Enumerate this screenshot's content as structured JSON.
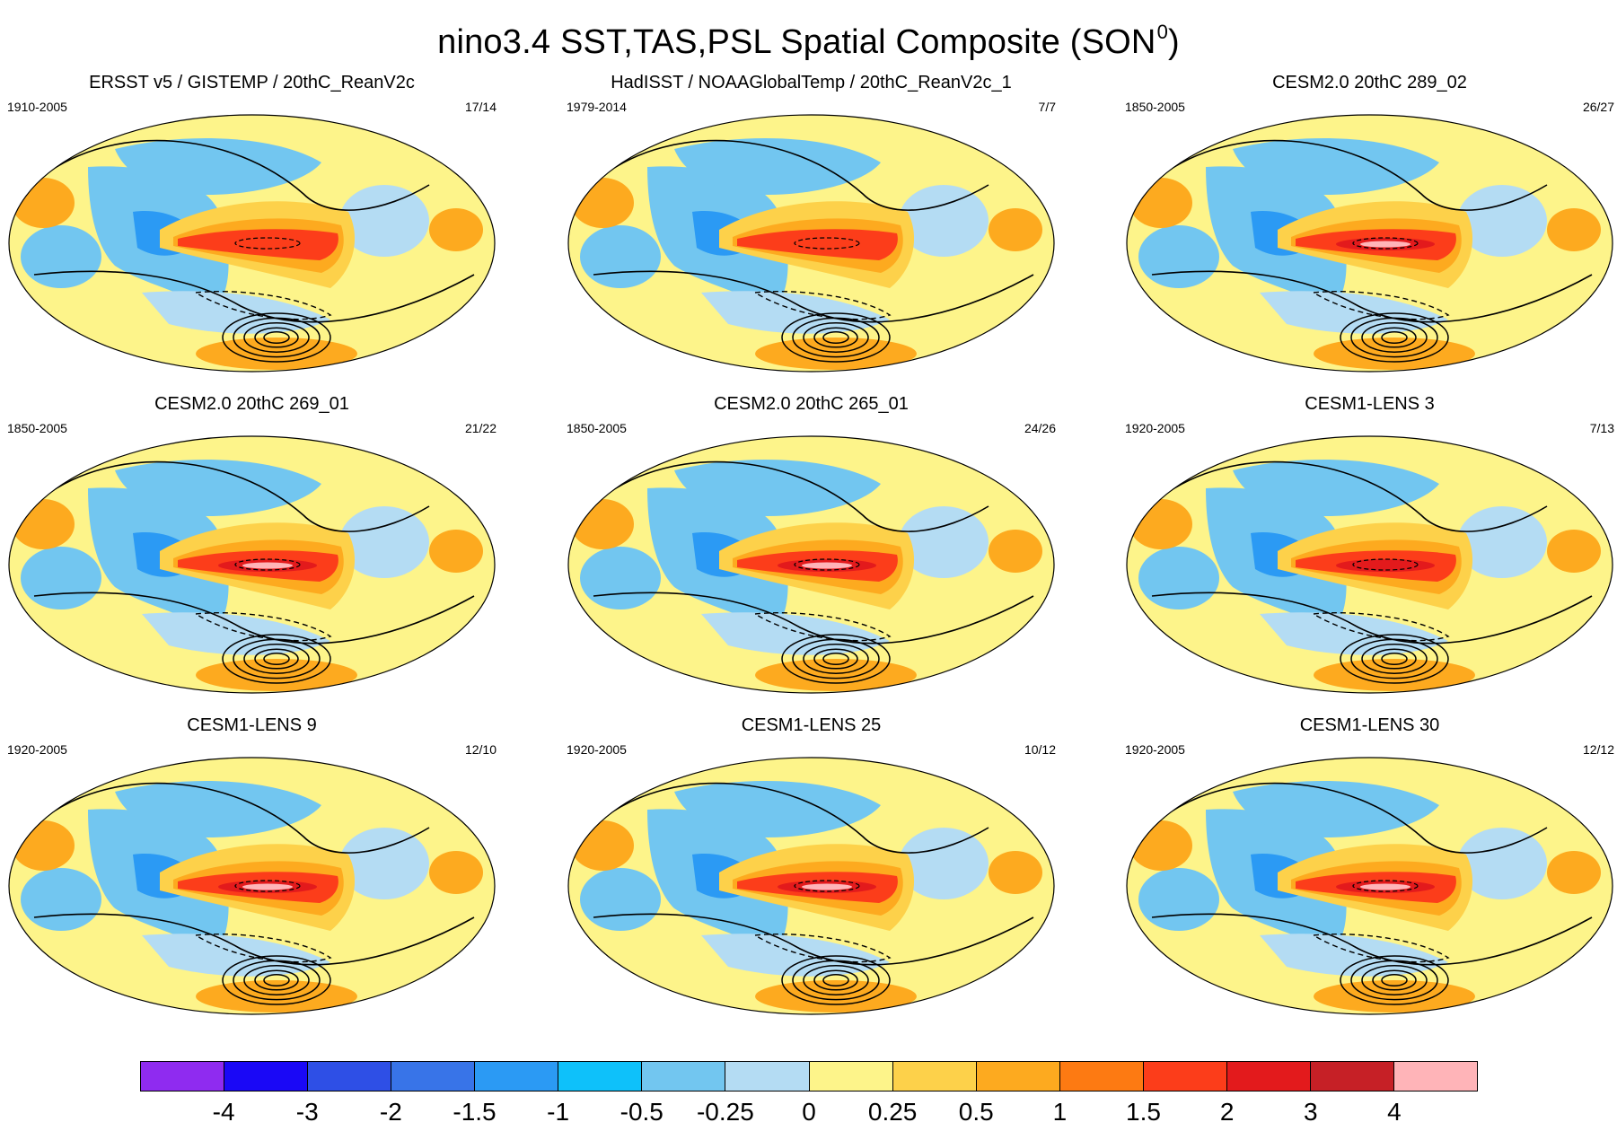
{
  "figure": {
    "title": "nino3.4 SST,TAS,PSL Spatial Composite (SON",
    "title_sup": "0",
    "title_close": ")"
  },
  "panels": [
    {
      "title": "ERSST v5 / GISTEMP / 20thC_ReanV2c",
      "years": "1910-2005",
      "count": "17/14"
    },
    {
      "title": "HadISST / NOAAGlobalTemp / 20thC_ReanV2c_1",
      "years": "1979-2014",
      "count": "7/7"
    },
    {
      "title": "CESM2.0 20thC 289_02",
      "years": "1850-2005",
      "count": "26/27"
    },
    {
      "title": "CESM2.0 20thC 269_01",
      "years": "1850-2005",
      "count": "21/22"
    },
    {
      "title": "CESM2.0 20thC 265_01",
      "years": "1850-2005",
      "count": "24/26"
    },
    {
      "title": "CESM1-LENS 3",
      "years": "1920-2005",
      "count": "7/13"
    },
    {
      "title": "CESM1-LENS 9",
      "years": "1920-2005",
      "count": "12/10"
    },
    {
      "title": "CESM1-LENS 25",
      "years": "1920-2005",
      "count": "10/12"
    },
    {
      "title": "CESM1-LENS 30",
      "years": "1920-2005",
      "count": "12/12"
    }
  ],
  "chart_data": {
    "type": "heatmap",
    "title": "nino3.4 SST,TAS,PSL Spatial Composite (SON0)",
    "projection": "global robinson",
    "fields": [
      "SST/TAS shaded",
      "PSL contours (solid positive, dashed negative)"
    ],
    "colorbar": {
      "labels": [
        "-4",
        "-3",
        "-2",
        "-1.5",
        "-1",
        "-0.5",
        "-0.25",
        "0",
        "0.25",
        "0.5",
        "1",
        "1.5",
        "2",
        "3",
        "4"
      ],
      "colors": [
        "#8f2bf0",
        "#1a08f6",
        "#2e4fe6",
        "#3874e8",
        "#2b9af4",
        "#0ec1fa",
        "#72c6f0",
        "#b4dcf3",
        "#fdf48a",
        "#fdd14a",
        "#fdaa1f",
        "#fd7a12",
        "#fc3d1a",
        "#e31a1c",
        "#c62026",
        "#ffb4b8"
      ]
    },
    "panels": [
      {
        "name": "ERSST v5 / GISTEMP / 20thC_ReanV2c",
        "period": "1910-2005",
        "events": "17/14",
        "nino_peak": 2
      },
      {
        "name": "HadISST / NOAAGlobalTemp / 20thC_ReanV2c_1",
        "period": "1979-2014",
        "events": "7/7",
        "nino_peak": 2
      },
      {
        "name": "CESM2.0 20thC 289_02",
        "period": "1850-2005",
        "events": "26/27",
        "nino_peak": 4
      },
      {
        "name": "CESM2.0 20thC 269_01",
        "period": "1850-2005",
        "events": "21/22",
        "nino_peak": 4
      },
      {
        "name": "CESM2.0 20thC 265_01",
        "period": "1850-2005",
        "events": "24/26",
        "nino_peak": 4
      },
      {
        "name": "CESM1-LENS 3",
        "period": "1920-2005",
        "events": "7/13",
        "nino_peak": 3
      },
      {
        "name": "CESM1-LENS 9",
        "period": "1920-2005",
        "events": "12/10",
        "nino_peak": 4
      },
      {
        "name": "CESM1-LENS 25",
        "period": "1920-2005",
        "events": "10/12",
        "nino_peak": 4
      },
      {
        "name": "CESM1-LENS 30",
        "period": "1920-2005",
        "events": "12/12",
        "nino_peak": 4
      }
    ]
  }
}
